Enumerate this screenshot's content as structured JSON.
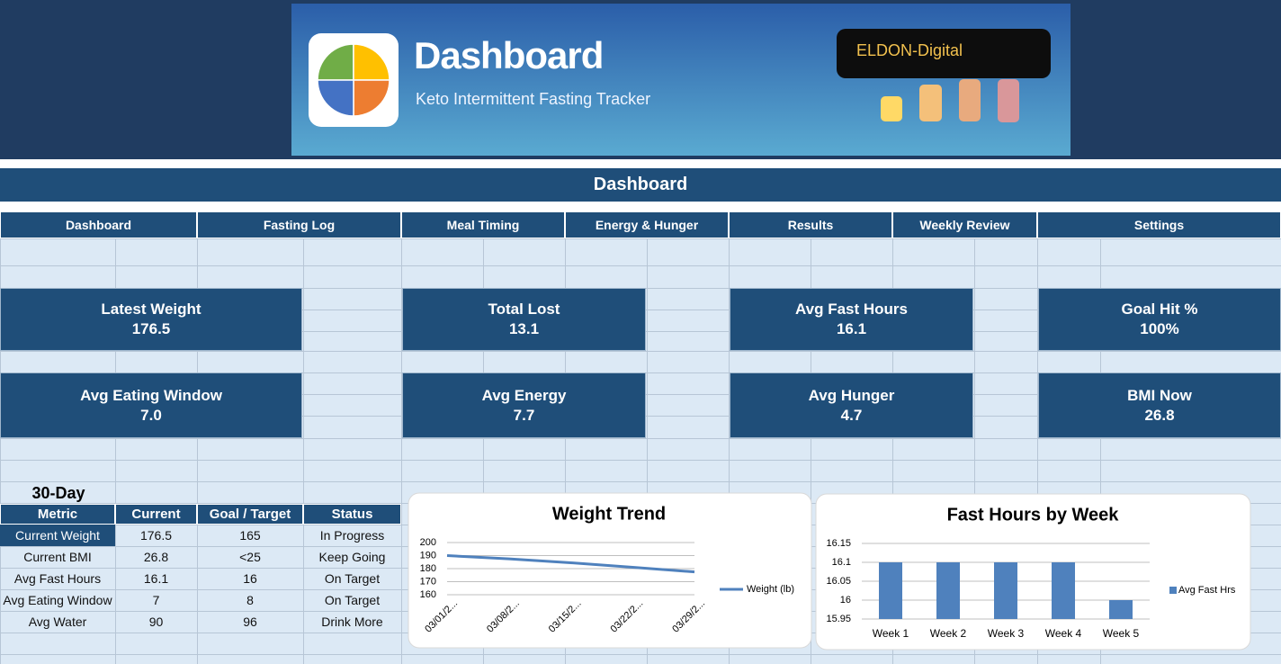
{
  "header": {
    "title": "Dashboard",
    "subtitle": "Keto Intermittent Fasting Tracker",
    "brand": "ELDON-Digital"
  },
  "banner_title": "Dashboard",
  "nav": [
    "Dashboard",
    "Fasting Log",
    "Meal Timing",
    "Energy & Hunger",
    "Results",
    "Weekly Review",
    "Settings"
  ],
  "kpis": [
    {
      "label": "Latest Weight",
      "value": "176.5"
    },
    {
      "label": "Total Lost",
      "value": "13.1"
    },
    {
      "label": "Avg Fast Hours",
      "value": "16.1"
    },
    {
      "label": "Goal Hit %",
      "value": "100%"
    },
    {
      "label": "Avg Eating Window",
      "value": "7.0"
    },
    {
      "label": "Avg Energy",
      "value": "7.7"
    },
    {
      "label": "Avg Hunger",
      "value": "4.7"
    },
    {
      "label": "BMI Now",
      "value": "26.8"
    }
  ],
  "table": {
    "title": "30-Day",
    "columns": [
      "Metric",
      "Current",
      "Goal / Target",
      "Status"
    ],
    "rows": [
      [
        "Current Weight",
        "176.5",
        "165",
        "In Progress"
      ],
      [
        "Current BMI",
        "26.8",
        "<25",
        "Keep Going"
      ],
      [
        "Avg Fast Hours",
        "16.1",
        "16",
        "On Target"
      ],
      [
        "Avg Eating Window",
        "7",
        "8",
        "On Target"
      ],
      [
        "Avg Water",
        "90",
        "96",
        "Drink More"
      ]
    ]
  },
  "chart_data": [
    {
      "type": "line",
      "title": "Weight Trend",
      "categories": [
        "03/01/2...",
        "03/08/2...",
        "03/15/2...",
        "03/22/2...",
        "03/29/2..."
      ],
      "series": [
        {
          "name": "Weight (lb)",
          "color": "#4f81bd",
          "values": [
            190,
            187.5,
            184.5,
            181,
            177.5
          ]
        }
      ],
      "ylim": [
        160,
        200
      ],
      "yticks": [
        160,
        170,
        180,
        190,
        200
      ],
      "grid": true,
      "legend": "right"
    },
    {
      "type": "bar",
      "title": "Fast Hours by Week",
      "categories": [
        "Week 1",
        "Week 2",
        "Week 3",
        "Week 4",
        "Week 5"
      ],
      "series": [
        {
          "name": "Avg Fast Hrs",
          "color": "#4f81bd",
          "values": [
            16.1,
            16.1,
            16.1,
            16.1,
            16
          ]
        }
      ],
      "ylim": [
        15.95,
        16.15
      ],
      "yticks": [
        15.95,
        16,
        16.05,
        16.1,
        16.15
      ],
      "grid": true,
      "legend": "right"
    }
  ]
}
